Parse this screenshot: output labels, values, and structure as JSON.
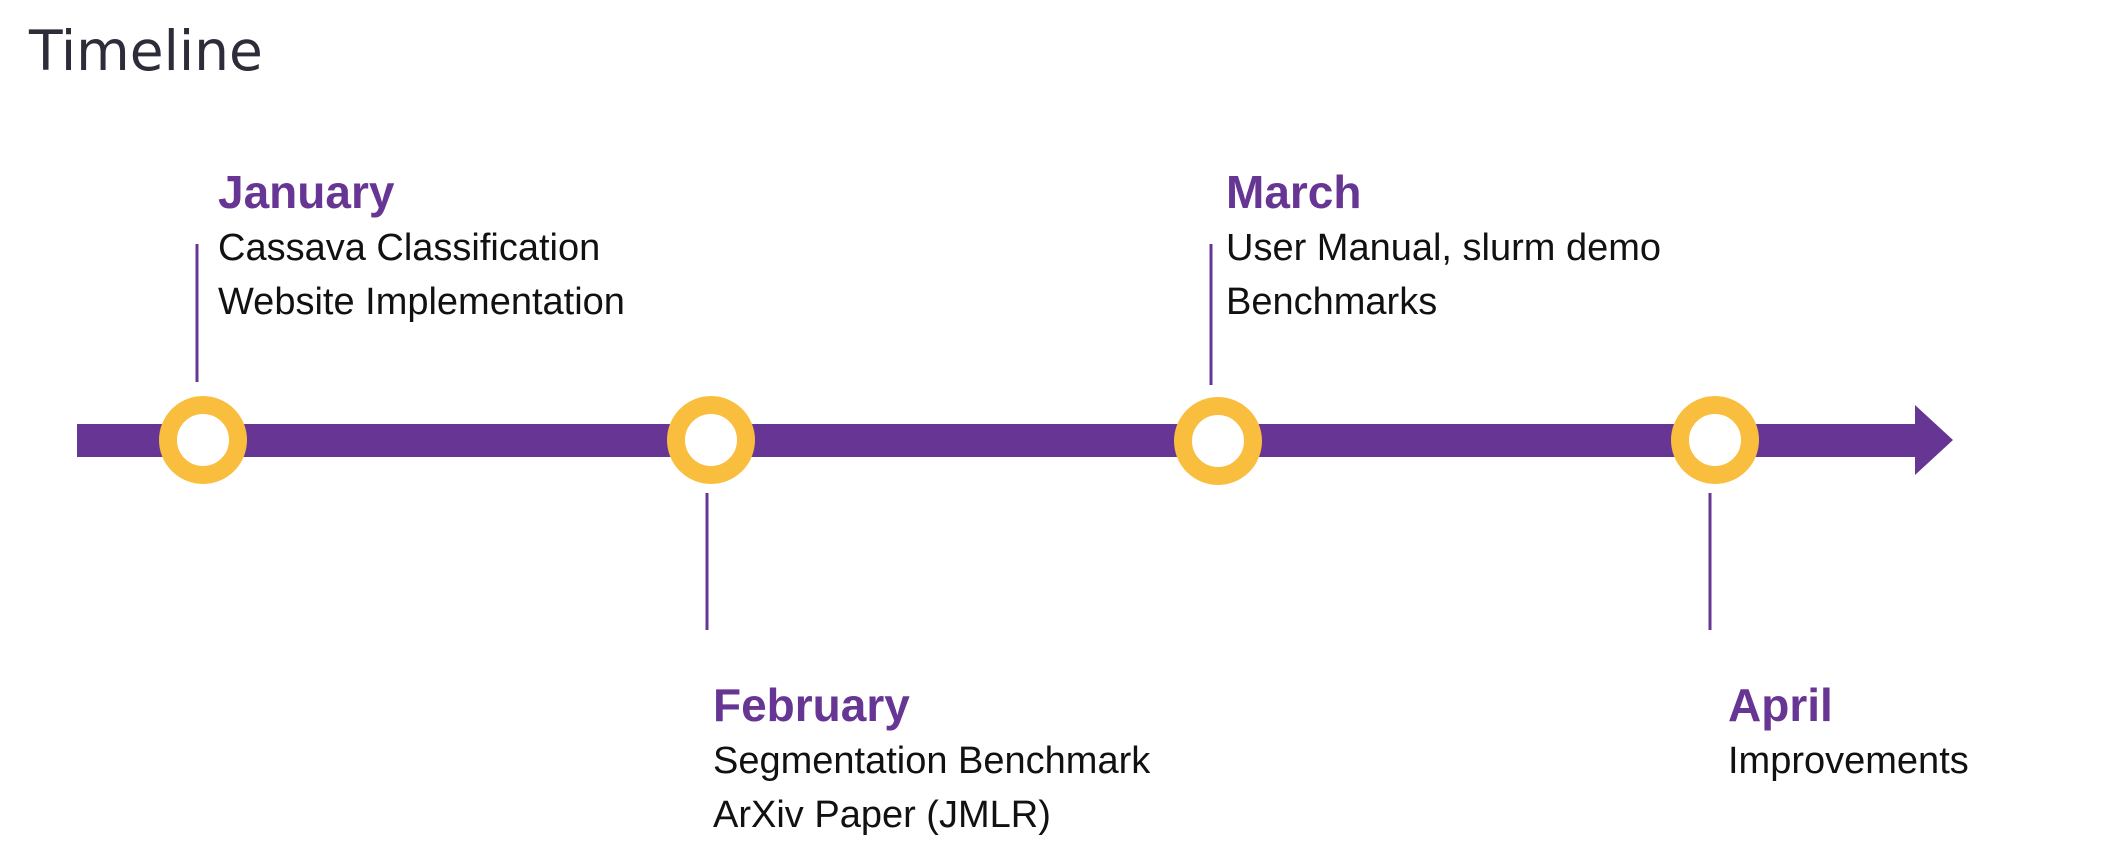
{
  "title": "Timeline",
  "colors": {
    "accent": "#673694",
    "node": "#f9be3e",
    "text": "#111111",
    "heading": "#2d2d3a"
  },
  "milestones": [
    {
      "month": "January",
      "lines": [
        "Cassava Classification",
        "Website Implementation"
      ],
      "side": "above"
    },
    {
      "month": "February",
      "lines": [
        "Segmentation Benchmark",
        "ArXiv Paper (JMLR)"
      ],
      "side": "below"
    },
    {
      "month": "March",
      "lines": [
        "User Manual, slurm demo",
        "Benchmarks"
      ],
      "side": "above"
    },
    {
      "month": "April",
      "lines": [
        "Improvements"
      ],
      "side": "below"
    }
  ]
}
